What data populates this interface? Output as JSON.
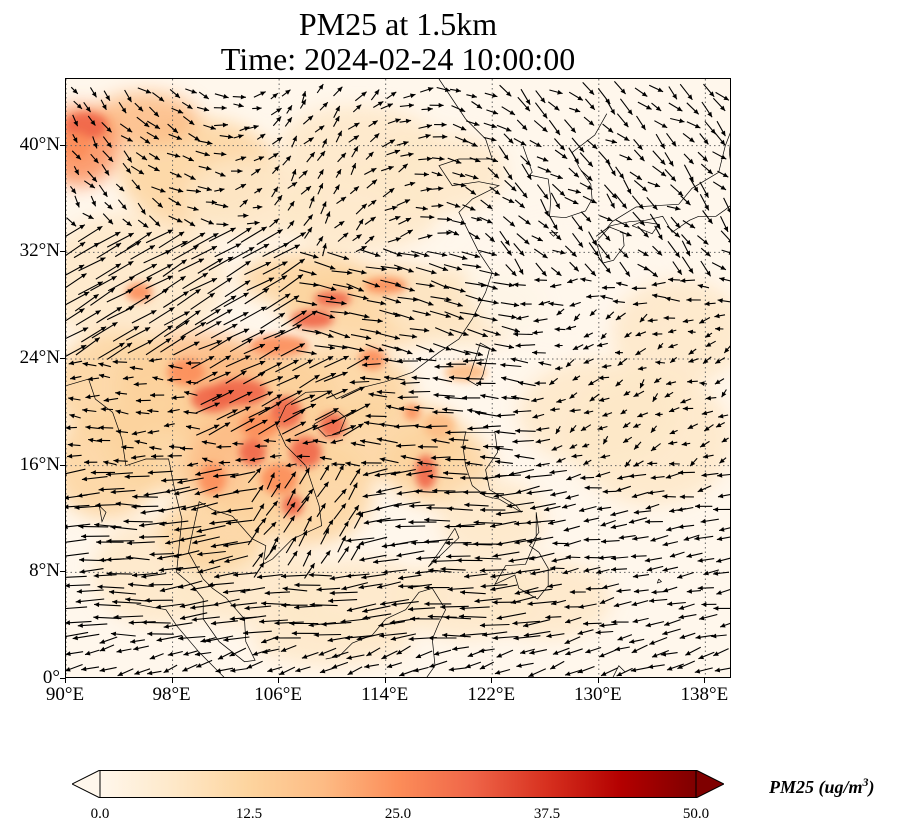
{
  "title": {
    "line1": "PM25 at 1.5km",
    "line2": "Time: 2024-02-24 10:00:00"
  },
  "axes": {
    "lat_ticks": [
      "0°",
      "8°N",
      "16°N",
      "24°N",
      "32°N",
      "40°N"
    ],
    "lat_values": [
      0,
      8,
      16,
      24,
      32,
      40
    ],
    "lon_ticks": [
      "90°E",
      "98°E",
      "106°E",
      "114°E",
      "122°E",
      "130°E",
      "138°E"
    ],
    "lon_values": [
      90,
      98,
      106,
      114,
      122,
      130,
      138
    ],
    "lon_range": [
      90,
      140
    ],
    "lat_range": [
      0,
      45
    ],
    "gridlines": "dotted"
  },
  "colorbar": {
    "ticks": [
      "0.0",
      "12.5",
      "25.0",
      "37.5",
      "50.0"
    ],
    "tick_values": [
      0,
      12.5,
      25,
      37.5,
      50
    ],
    "range": [
      0,
      50
    ],
    "colormap": "OrRd",
    "extend": "both",
    "colors": [
      "#fff7ec",
      "#fee8c8",
      "#fdd49e",
      "#fdbb84",
      "#fc8d59",
      "#ef6548",
      "#d7301f",
      "#b30000",
      "#7f0000"
    ],
    "units_label": "PM25 (ug/m",
    "units_exponent": "3",
    "units_close": ")"
  }
}
